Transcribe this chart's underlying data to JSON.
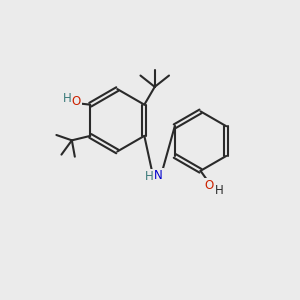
{
  "bg_color": "#ebebeb",
  "bond_color": "#2a2a2a",
  "o_color": "#cc2200",
  "n_color": "#0000cc",
  "h_color": "#3a7a7a",
  "atom_bg": "#ebebeb",
  "figsize": [
    3.0,
    3.0
  ],
  "dpi": 100,
  "xlim": [
    0,
    10
  ],
  "ylim": [
    0,
    10
  ]
}
